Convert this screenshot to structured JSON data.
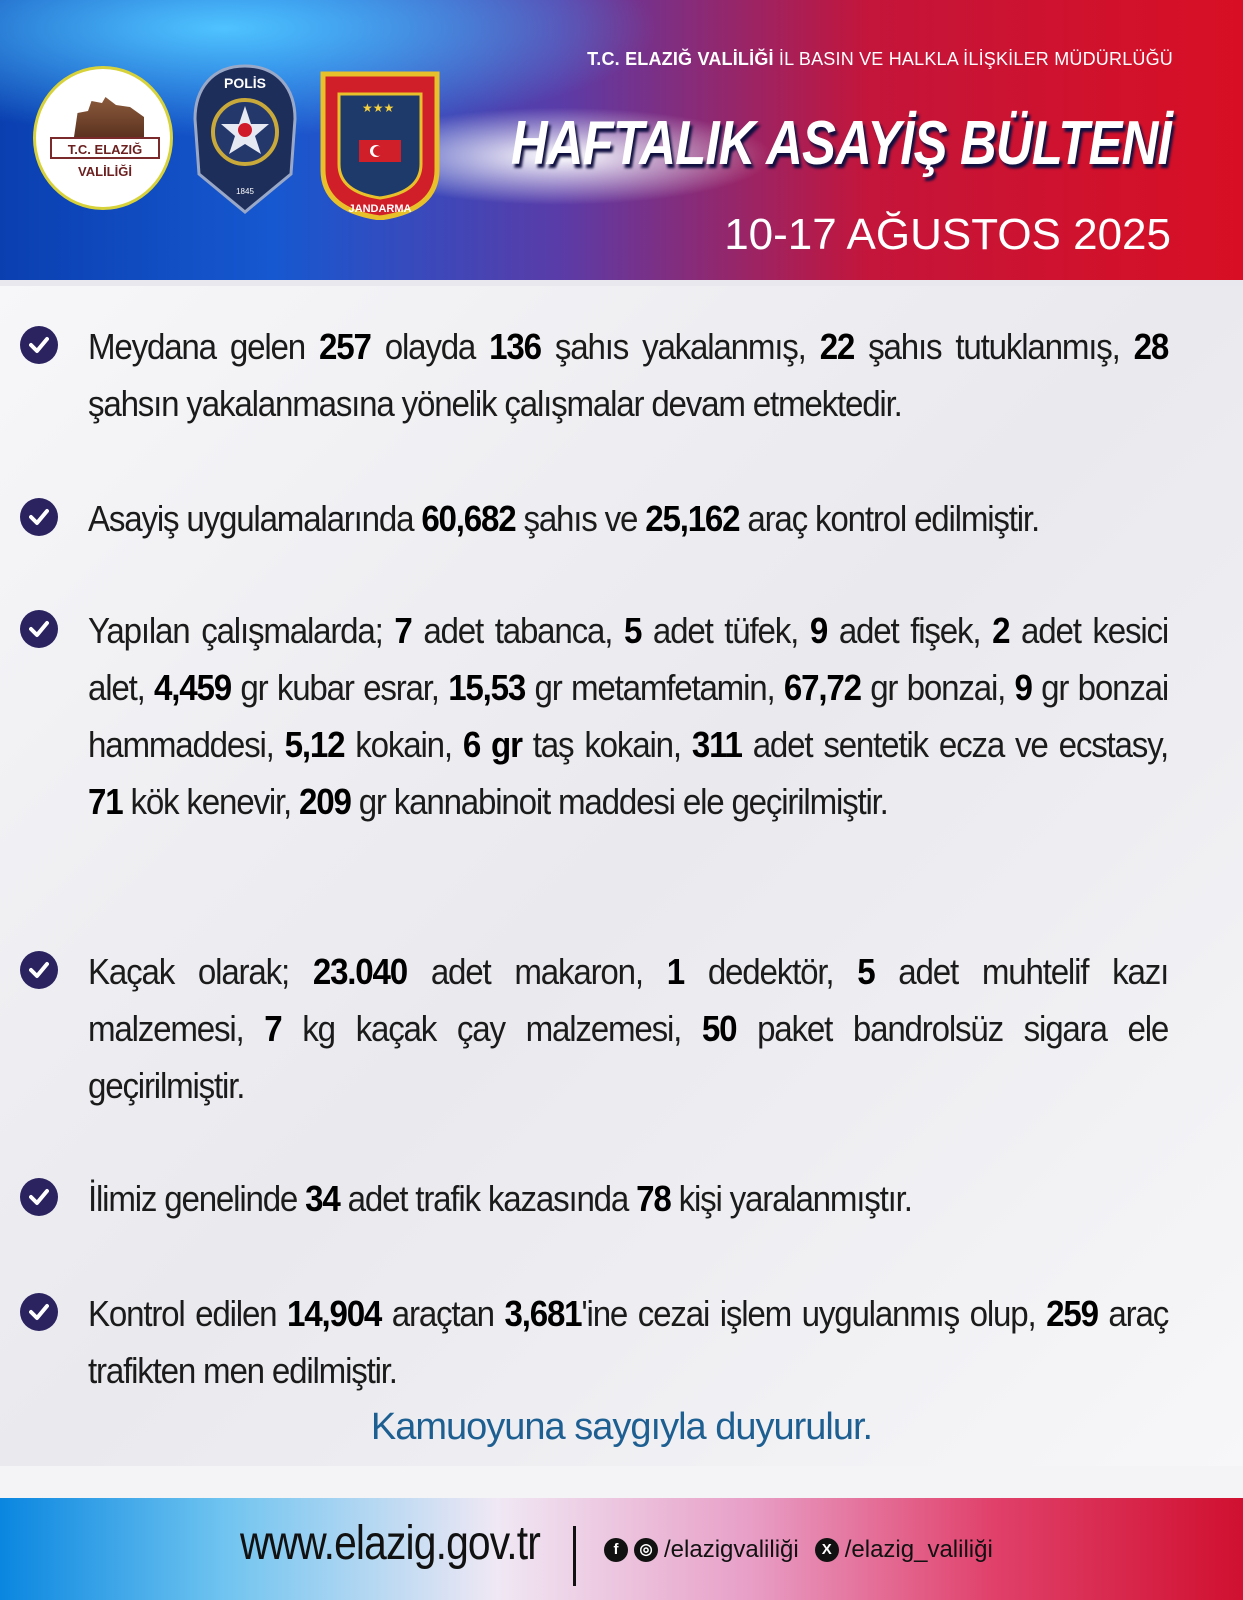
{
  "header": {
    "org_bold": "T.C. ELAZIĞ VALİLİĞİ",
    "org_rest": " İL BASIN VE HALKLA İLİŞKİLER MÜDÜRLÜĞÜ",
    "title": "HAFTALIK ASAYİŞ BÜLTENİ",
    "date": "10-17 AĞUSTOS 2025",
    "logos": {
      "valilik": "T.C. ELAZIĞ VALİLİĞİ",
      "polis": "POLİS EMNİYET GENEL MÜDÜRLÜĞÜ 1845",
      "jandarma": "JANDARMA 1839"
    }
  },
  "items": [
    [
      {
        "t": "Meydana gelen "
      },
      {
        "t": "257",
        "b": true
      },
      {
        "t": " olayda "
      },
      {
        "t": "136",
        "b": true
      },
      {
        "t": " şahıs yakalanmış, "
      },
      {
        "t": "22",
        "b": true
      },
      {
        "t": " şahıs tutuklanmış, "
      },
      {
        "t": "28",
        "b": true
      },
      {
        "t": " şahsın yakalanmasına yönelik çalışmalar devam etmektedir."
      }
    ],
    [
      {
        "t": "Asayiş uygulamalarında "
      },
      {
        "t": "60,682",
        "b": true
      },
      {
        "t": " şahıs ve "
      },
      {
        "t": "25,162",
        "b": true
      },
      {
        "t": " araç kontrol edilmiştir."
      }
    ],
    [
      {
        "t": "Yapılan çalışmalarda; "
      },
      {
        "t": "7",
        "b": true
      },
      {
        "t": " adet tabanca, "
      },
      {
        "t": "5",
        "b": true
      },
      {
        "t": " adet tüfek, "
      },
      {
        "t": "9",
        "b": true
      },
      {
        "t": " adet fişek, "
      },
      {
        "t": "2",
        "b": true
      },
      {
        "t": " adet kesici alet, "
      },
      {
        "t": "4,459",
        "b": true
      },
      {
        "t": " gr kubar esrar, "
      },
      {
        "t": "15,53",
        "b": true
      },
      {
        "t": " gr metamfetamin, "
      },
      {
        "t": "67,72",
        "b": true
      },
      {
        "t": " gr bonzai, "
      },
      {
        "t": "9",
        "b": true
      },
      {
        "t": " gr bonzai hammaddesi, "
      },
      {
        "t": "5,12",
        "b": true
      },
      {
        "t": " kokain, "
      },
      {
        "t": "6 gr",
        "b": true
      },
      {
        "t": " taş kokain, "
      },
      {
        "t": "311",
        "b": true
      },
      {
        "t": " adet sentetik ecza ve ecstasy, "
      },
      {
        "t": "71",
        "b": true
      },
      {
        "t": " kök kenevir, "
      },
      {
        "t": "209",
        "b": true
      },
      {
        "t": " gr kannabinoit maddesi ele geçirilmiştir."
      }
    ],
    [
      {
        "t": "Kaçak olarak; "
      },
      {
        "t": "23.040",
        "b": true
      },
      {
        "t": " adet makaron, "
      },
      {
        "t": "1",
        "b": true
      },
      {
        "t": " dedektör, "
      },
      {
        "t": "5",
        "b": true
      },
      {
        "t": " adet muhtelif kazı malzemesi, "
      },
      {
        "t": "7",
        "b": true
      },
      {
        "t": " kg kaçak çay malzemesi, "
      },
      {
        "t": "50",
        "b": true
      },
      {
        "t": " paket bandrolsüz sigara ele geçirilmiştir."
      }
    ],
    [
      {
        "t": "İlimiz genelinde "
      },
      {
        "t": "34",
        "b": true
      },
      {
        "t": " adet trafik kazasında "
      },
      {
        "t": "78",
        "b": true
      },
      {
        "t": " kişi yaralanmıştır."
      }
    ],
    [
      {
        "t": "Kontrol edilen "
      },
      {
        "t": "14,904",
        "b": true
      },
      {
        "t": " araçtan "
      },
      {
        "t": "3,681",
        "b": true
      },
      {
        "t": "'ine cezai işlem uygulanmış olup, "
      },
      {
        "t": "259",
        "b": true
      },
      {
        "t": " araç trafikten men edilmiştir."
      }
    ]
  ],
  "closing": "Kamuoyuna saygıyla duyurulur.",
  "footer": {
    "url": "www.elazig.gov.tr",
    "fb_ig_handle": "/elazigvaliliği",
    "x_handle": "/elazig_valiliği"
  },
  "colors": {
    "bullet": "#2a2360",
    "closing": "#1e5f92",
    "blue": "#1658d0",
    "red": "#d80f24"
  }
}
